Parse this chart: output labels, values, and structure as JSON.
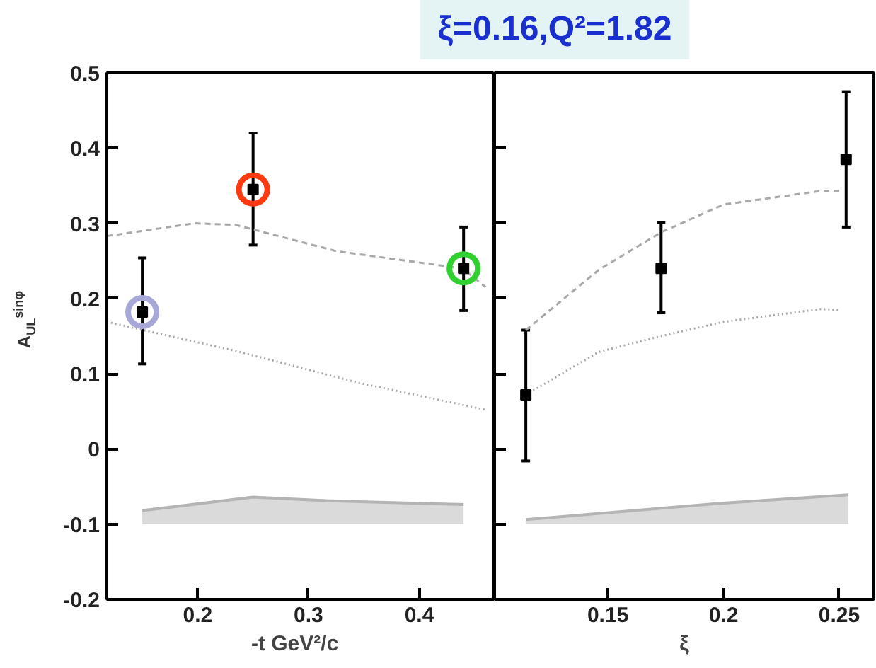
{
  "chart_data": [
    {
      "type": "scatter",
      "title": "ξ=0.16,Q²=1.82",
      "xlabel": "-t   GeV²/c",
      "ylabel": "A$_{UL}$$^{sinφ}$",
      "xlim": [
        0.118,
        0.468
      ],
      "xticks": [
        0.2,
        0.3,
        0.4
      ],
      "ylim": [
        -0.2,
        0.5
      ],
      "yticks": [
        -0.2,
        -0.1,
        0,
        0.1,
        0.2,
        0.3,
        0.4,
        0.5
      ],
      "series": [
        {
          "type": "line",
          "line_style": "dashed",
          "marker": "none",
          "color": "#a8a8a8",
          "x": [
            0.118,
            0.197,
            0.234,
            0.325,
            0.439,
            0.46
          ],
          "values": [
            0.283,
            0.3,
            0.298,
            0.263,
            0.24,
            0.215
          ]
        },
        {
          "type": "line",
          "line_style": "dotted",
          "marker": "none",
          "color": "#a8a8a8",
          "x": [
            0.118,
            0.238,
            0.345,
            0.46
          ],
          "values": [
            0.169,
            0.129,
            0.088,
            0.052
          ]
        },
        {
          "type": "line",
          "line_style": "solid",
          "marker": "none",
          "color": "#b4b4b4",
          "x": [
            0.15,
            0.25,
            0.319,
            0.44
          ],
          "values": [
            -0.082,
            -0.064,
            -0.069,
            -0.074
          ],
          "lower": [
            -0.1,
            -0.1,
            -0.1,
            -0.1
          ],
          "upper": [
            -0.082,
            -0.064,
            -0.069,
            -0.074
          ]
        },
        {
          "marker": "square",
          "color": "#000000",
          "x": [
            0.15,
            0.25,
            0.44
          ],
          "values": [
            0.182,
            0.345,
            0.24
          ],
          "errors": [
            [
              0.113,
              0.254
            ],
            [
              0.271,
              0.42
            ],
            [
              0.184,
              0.295
            ]
          ]
        },
        {
          "marker": "circle",
          "colors": [
            "#a8a8d8",
            "#ff3a10",
            "#30d030"
          ],
          "x": [
            0.15,
            0.25,
            0.44
          ],
          "values": [
            0.182,
            0.345,
            0.24
          ]
        }
      ]
    },
    {
      "type": "scatter",
      "xlabel": "ξ",
      "tick_labels": "x",
      "xlim": [
        0.101,
        0.265
      ],
      "xticks": [
        0.15,
        0.2,
        0.25
      ],
      "ylim": [
        -0.2,
        0.5
      ],
      "yticks": [
        -0.2,
        -0.1,
        0,
        0.1,
        0.2,
        0.3,
        0.4,
        0.5
      ],
      "series": [
        {
          "type": "line",
          "line_style": "dashed",
          "marker": "none",
          "color": "#a8a8a8",
          "x": [
            0.1145,
            0.146,
            0.173,
            0.2,
            0.242,
            0.25
          ],
          "values": [
            0.158,
            0.238,
            0.288,
            0.325,
            0.343,
            0.343
          ]
        },
        {
          "type": "line",
          "line_style": "dotted",
          "marker": "none",
          "color": "#a8a8a8",
          "x": [
            0.1145,
            0.146,
            0.173,
            0.2,
            0.242,
            0.25
          ],
          "values": [
            0.072,
            0.129,
            0.15,
            0.169,
            0.186,
            0.185
          ]
        },
        {
          "type": "line",
          "line_style": "solid",
          "marker": "none",
          "color": "#b4b4b4",
          "x": [
            0.1145,
            0.2,
            0.254
          ],
          "values": [
            -0.094,
            -0.072,
            -0.061
          ],
          "lower": [
            -0.1,
            -0.1,
            -0.1
          ],
          "upper": [
            -0.094,
            -0.072,
            -0.061
          ]
        },
        {
          "marker": "square",
          "color": "#000000",
          "x": [
            0.1145,
            0.173,
            0.253
          ],
          "values": [
            0.072,
            0.24,
            0.385
          ],
          "errors": [
            [
              -0.016,
              0.158
            ],
            [
              0.181,
              0.301
            ],
            [
              0.295,
              0.475
            ]
          ]
        }
      ]
    }
  ]
}
